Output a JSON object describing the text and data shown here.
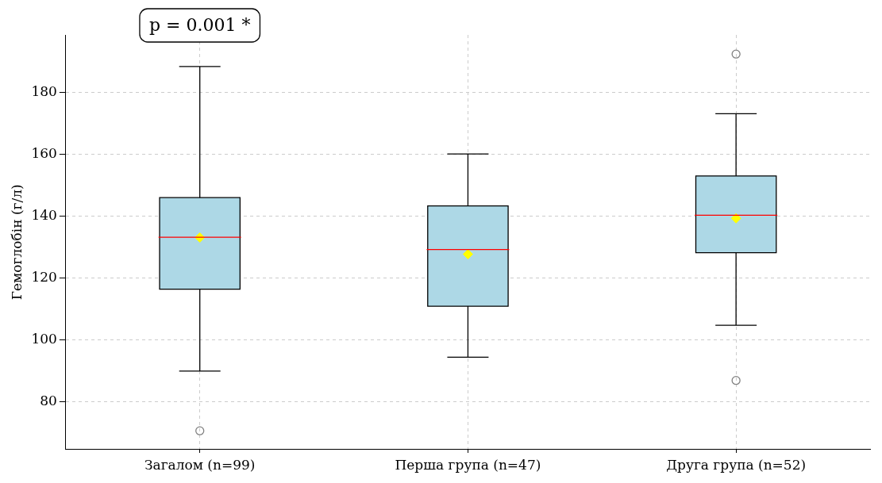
{
  "chart_data": {
    "type": "box",
    "ylabel": "Гемоглобін (г/л)",
    "categories": [
      "Загалом (n=99)",
      "Перша група (n=47)",
      "Друга група (n=52)"
    ],
    "series": [
      {
        "color": "#add8e6",
        "boxes": [
          {
            "low": 89.8,
            "q1": 116.3,
            "median": 133.1,
            "q3": 145.9,
            "high": 188.3,
            "mean": 133,
            "outliers": [
              70.5
            ]
          },
          {
            "low": 94.3,
            "q1": 110.8,
            "median": 129.1,
            "q3": 143.2,
            "high": 160,
            "mean": 127.6
          },
          {
            "low": 104.6,
            "q1": 128.1,
            "median": 140.2,
            "q3": 152.9,
            "high": 173,
            "mean": 139.2,
            "outliers": [
              192.3,
              86.8
            ]
          }
        ]
      }
    ],
    "ylim": [
      64.5,
      198.5
    ],
    "yticks": [
      80,
      100,
      120,
      140,
      160,
      180
    ],
    "grid": true,
    "marker": "diamond",
    "annotations": [
      "p = 0.001 *"
    ]
  }
}
